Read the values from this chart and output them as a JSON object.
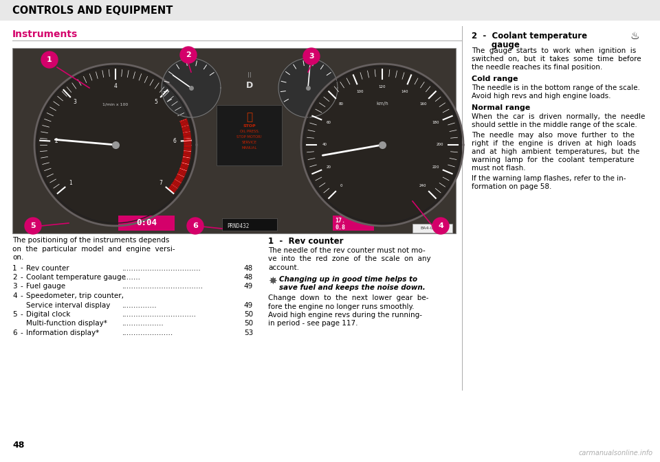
{
  "title_bar_text": "CONTROLS AND EQUIPMENT",
  "title_bar_bg": "#e8e8e8",
  "section_heading": "Instruments",
  "section_heading_color": "#d4006a",
  "page_bg": "#ffffff",
  "page_number": "48",
  "separator_color": "#aaaaaa",
  "text_color": "#000000",
  "pink_color": "#d4006a",
  "body_fs": 7.5,
  "heading_fs": 8.5,
  "subheading_fs": 8.0,
  "title_fs": 10.5,
  "left_col_intro": [
    "The positioning of the instruments depends",
    "on  the  particular  model  and  engine  versi-",
    "on."
  ],
  "list_items": [
    [
      "1",
      "-",
      "Rev counter",
      48
    ],
    [
      "2",
      "-",
      "Coolant temperature gauge",
      48
    ],
    [
      "3",
      "-",
      "Fuel gauge",
      49
    ],
    [
      "4",
      "-",
      "Speedometer, trip counter,",
      null
    ],
    [
      "",
      "",
      "Service interval display",
      49
    ],
    [
      "5",
      "-",
      "Digital clock",
      50
    ],
    [
      "",
      "",
      "Multi-function display*",
      50
    ],
    [
      "6",
      "-",
      "Information display*",
      53
    ]
  ],
  "mid_heading": "1  -  Rev counter",
  "mid_para1": [
    "The needle of the rev counter must not mo-",
    "ve  into  the  red  zone  of  the  scale  on  any",
    "account."
  ],
  "mid_italic1": "Changing up in good time helps to",
  "mid_italic2": "save fuel and keeps the noise down.",
  "mid_para2": [
    "Change  down  to  the  next  lower  gear  be-",
    "fore the engine no longer runs smoothly.",
    "Avoid high engine revs during the running-",
    "in period - see page 117."
  ],
  "right_heading": "2  -  Coolant temperature",
  "right_heading2": "       gauge",
  "right_para1": [
    "The  gauge  starts  to  work  when  ignition  is",
    "switched  on,  but  it  takes  some  time  before",
    "the needle reaches its final position."
  ],
  "right_sub1": "Cold range",
  "right_para2": [
    "The needle is in the bottom range of the scale.",
    "Avoid high revs and high engine loads."
  ],
  "right_sub2": "Normal range",
  "right_para3": [
    "When  the  car  is  driven  normally,  the  needle",
    "should settle in the middle range of the scale."
  ],
  "right_para4": [
    "The  needle  may  also  move  further  to  the",
    "right  if  the  engine  is  driven  at  high  loads",
    "and  at  high  ambient  temperatures,  but  the",
    "warning  lamp  for  the  coolant  temperature",
    "must not flash."
  ],
  "right_para5": [
    "If the warning lamp flashes, refer to the in-",
    "formation on page 58."
  ]
}
